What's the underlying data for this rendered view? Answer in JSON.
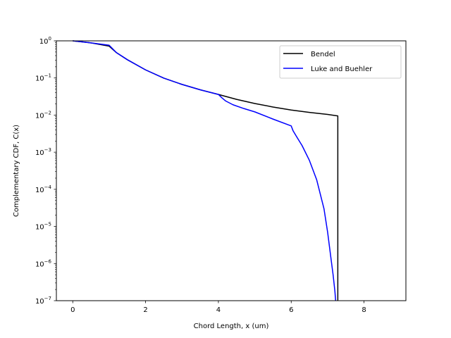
{
  "chart_data": {
    "type": "line",
    "title": "",
    "xlabel": "Chord Length, x (um)",
    "ylabel": "Complementary CDF, C(x)",
    "xscale": "linear",
    "yscale": "log",
    "xlim": [
      -0.45,
      9.15
    ],
    "ylim": [
      1e-07,
      1
    ],
    "x_ticks": [
      0,
      2,
      4,
      6,
      8
    ],
    "x_tick_labels": [
      "0",
      "2",
      "4",
      "6",
      "8"
    ],
    "y_ticks": [
      1e-07,
      1e-06,
      1e-05,
      0.0001,
      0.001,
      0.01,
      0.1,
      1
    ],
    "y_tick_labels": [
      {
        "base": "10",
        "exp": "−7"
      },
      {
        "base": "10",
        "exp": "−6"
      },
      {
        "base": "10",
        "exp": "−5"
      },
      {
        "base": "10",
        "exp": "−4"
      },
      {
        "base": "10",
        "exp": "−3"
      },
      {
        "base": "10",
        "exp": "−2"
      },
      {
        "base": "10",
        "exp": "−1"
      },
      {
        "base": "10",
        "exp": "0"
      }
    ],
    "grid": false,
    "legend_position": "upper right",
    "series": [
      {
        "name": "Bendel",
        "color": "#000000",
        "x": [
          0,
          0.5,
          1.0,
          1.2,
          1.5,
          2.0,
          2.5,
          3.0,
          3.5,
          4.0,
          4.5,
          5.0,
          5.5,
          6.0,
          6.5,
          7.0,
          7.28,
          7.28
        ],
        "y": [
          1.0,
          0.88,
          0.72,
          0.48,
          0.31,
          0.165,
          0.099,
          0.067,
          0.048,
          0.036,
          0.0265,
          0.0205,
          0.0165,
          0.0137,
          0.0118,
          0.0104,
          0.0095,
          1e-07
        ]
      },
      {
        "name": "Luke and Buehler",
        "color": "#0000ff",
        "x": [
          0,
          0.5,
          1.0,
          1.2,
          1.5,
          2.0,
          2.5,
          3.0,
          3.5,
          4.0,
          4.1,
          4.2,
          4.4,
          4.7,
          5.0,
          5.5,
          6.0,
          6.05,
          6.15,
          6.3,
          6.5,
          6.7,
          6.9,
          7.0,
          7.1,
          7.15,
          7.2,
          7.22
        ],
        "y": [
          1.0,
          0.88,
          0.76,
          0.48,
          0.31,
          0.165,
          0.099,
          0.067,
          0.048,
          0.036,
          0.029,
          0.024,
          0.019,
          0.015,
          0.0122,
          0.0078,
          0.0051,
          0.0038,
          0.0026,
          0.0015,
          0.0006,
          0.00018,
          3e-05,
          7e-06,
          1.2e-06,
          5e-07,
          1.8e-07,
          1e-07
        ]
      }
    ]
  }
}
